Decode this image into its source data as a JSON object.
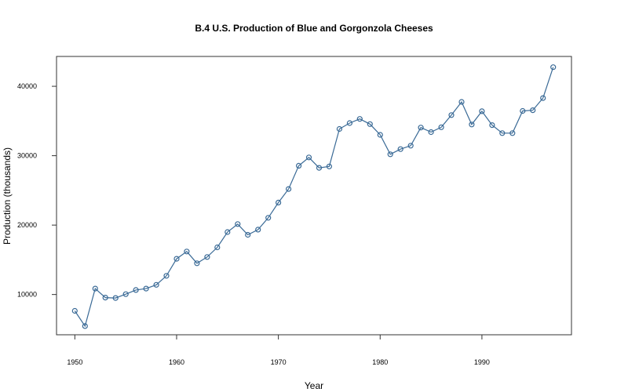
{
  "chart_data": {
    "type": "line",
    "title": "B.4  U.S. Production of Blue and Gorgonzola Cheeses",
    "xlabel": "Year",
    "ylabel": "Production (thousands)",
    "xlim": [
      1948.2,
      1998.8
    ],
    "ylim": [
      4200,
      44300
    ],
    "xticks": [
      1950,
      1960,
      1970,
      1980,
      1990
    ],
    "yticks": [
      10000,
      20000,
      30000,
      40000
    ],
    "grid": false,
    "line_color": "#3a6a96",
    "series": [
      {
        "x": [
          1950,
          1951,
          1952,
          1953,
          1954,
          1955,
          1956,
          1957,
          1958,
          1959,
          1960,
          1961,
          1962,
          1963,
          1964,
          1965,
          1966,
          1967,
          1968,
          1969,
          1970,
          1971,
          1972,
          1973,
          1974,
          1975,
          1976,
          1977,
          1978,
          1979,
          1980,
          1981,
          1982,
          1983,
          1984,
          1985,
          1986,
          1987,
          1988,
          1989,
          1990,
          1991,
          1992,
          1993,
          1994,
          1995,
          1996,
          1997
        ],
        "values": [
          7650,
          5450,
          10850,
          9550,
          9500,
          10050,
          10650,
          10850,
          11400,
          12700,
          15150,
          16200,
          14500,
          15400,
          16800,
          19000,
          20150,
          18600,
          19350,
          21050,
          23250,
          25200,
          28550,
          29750,
          28250,
          28450,
          33850,
          34700,
          35300,
          34550,
          33000,
          30200,
          30950,
          31450,
          34050,
          33400,
          34100,
          35850,
          37750,
          34500,
          36400,
          34400,
          33250,
          33250,
          36450,
          36550,
          38300,
          42750
        ]
      }
    ]
  }
}
